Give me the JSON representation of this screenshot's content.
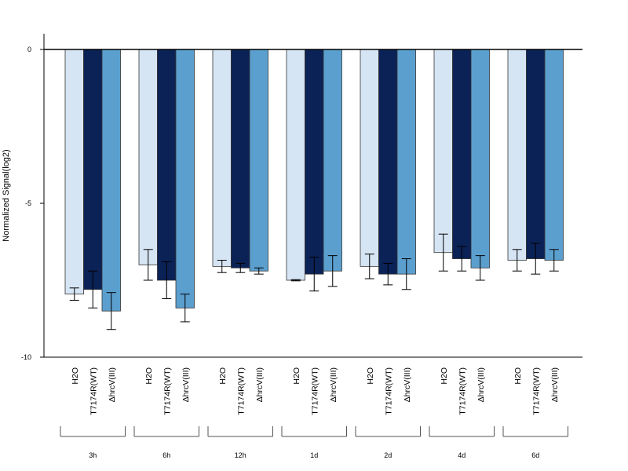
{
  "chart_data": {
    "type": "bar",
    "ylabel": "Normalized Signal(log2)",
    "ylim": [
      -10,
      0.5
    ],
    "yticks": [
      0,
      -5,
      -10
    ],
    "groups": [
      "3h",
      "6h",
      "12h",
      "1d",
      "2d",
      "4d",
      "6d"
    ],
    "conditions": [
      "H2O",
      "T7174R(WT)",
      "ΔhrcV(III)"
    ],
    "colors": [
      "#d6e5f4",
      "#0b2257",
      "#5b9fcf"
    ],
    "series": [
      {
        "name": "H2O",
        "values": [
          -7.95,
          -7.0,
          -7.05,
          -7.5,
          -7.05,
          -6.6,
          -6.85
        ],
        "error": [
          0.2,
          0.5,
          0.2,
          0.02,
          0.4,
          0.6,
          0.35
        ]
      },
      {
        "name": "T7174R(WT)",
        "values": [
          -7.8,
          -7.5,
          -7.1,
          -7.3,
          -7.3,
          -6.8,
          -6.8
        ],
        "error": [
          0.6,
          0.6,
          0.15,
          0.55,
          0.35,
          0.4,
          0.5
        ]
      },
      {
        "name": "ΔhrcV(III)",
        "values": [
          -8.5,
          -8.4,
          -7.2,
          -7.2,
          -7.3,
          -7.1,
          -6.85
        ],
        "error": [
          0.6,
          0.45,
          0.1,
          0.5,
          0.5,
          0.4,
          0.35
        ]
      }
    ]
  }
}
